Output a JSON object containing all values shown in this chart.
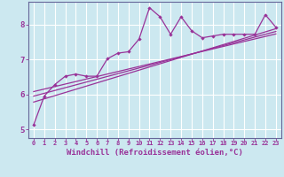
{
  "background_color": "#cce8f0",
  "grid_color": "#ffffff",
  "line_color": "#993399",
  "xlabel": "Windchill (Refroidissement éolien,°C)",
  "xlim": [
    -0.5,
    23.5
  ],
  "ylim": [
    4.75,
    8.65
  ],
  "yticks": [
    5,
    6,
    7,
    8
  ],
  "xticks": [
    0,
    1,
    2,
    3,
    4,
    5,
    6,
    7,
    8,
    9,
    10,
    11,
    12,
    13,
    14,
    15,
    16,
    17,
    18,
    19,
    20,
    21,
    22,
    23
  ],
  "main_x": [
    0,
    1,
    2,
    3,
    4,
    5,
    6,
    7,
    8,
    9,
    10,
    11,
    12,
    13,
    14,
    15,
    16,
    17,
    18,
    19,
    20,
    21,
    22,
    23
  ],
  "main_y": [
    5.13,
    5.95,
    6.28,
    6.52,
    6.58,
    6.52,
    6.52,
    7.02,
    7.18,
    7.22,
    7.58,
    8.48,
    8.22,
    7.72,
    8.22,
    7.82,
    7.62,
    7.67,
    7.72,
    7.72,
    7.72,
    7.72,
    8.28,
    7.92
  ],
  "reg_lines": [
    {
      "x0": 0,
      "x1": 23,
      "y0": 5.78,
      "y1": 7.88
    },
    {
      "x0": 0,
      "x1": 23,
      "y0": 5.95,
      "y1": 7.8
    },
    {
      "x0": 0,
      "x1": 23,
      "y0": 6.08,
      "y1": 7.73
    }
  ],
  "spine_color": "#666699",
  "xlabel_fontsize": 6.5,
  "tick_fontsize_x": 5.0,
  "tick_fontsize_y": 6.5
}
